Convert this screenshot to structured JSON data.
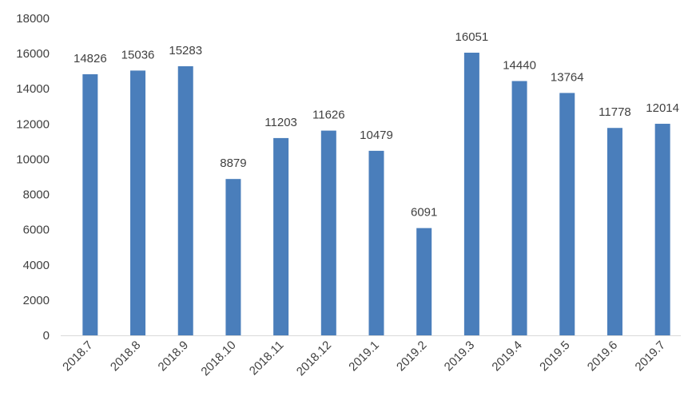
{
  "chart_data": {
    "type": "bar",
    "categories": [
      "2018.7",
      "2018.8",
      "2018.9",
      "2018.10",
      "2018.11",
      "2018.12",
      "2019.1",
      "2019.2",
      "2019.3",
      "2019.4",
      "2019.5",
      "2019.6",
      "2019.7"
    ],
    "values": [
      14826,
      15036,
      15283,
      8879,
      11203,
      11626,
      10479,
      6091,
      16051,
      14440,
      13764,
      11778,
      12014
    ],
    "title": "",
    "xlabel": "",
    "ylabel": "",
    "ylim": [
      0,
      18000
    ],
    "yticks": [
      0,
      2000,
      4000,
      6000,
      8000,
      10000,
      12000,
      14000,
      16000,
      18000
    ],
    "grid": false,
    "legend": "none",
    "bar_color": "#4a7ebb",
    "axis_color": "#d9d9d9"
  }
}
